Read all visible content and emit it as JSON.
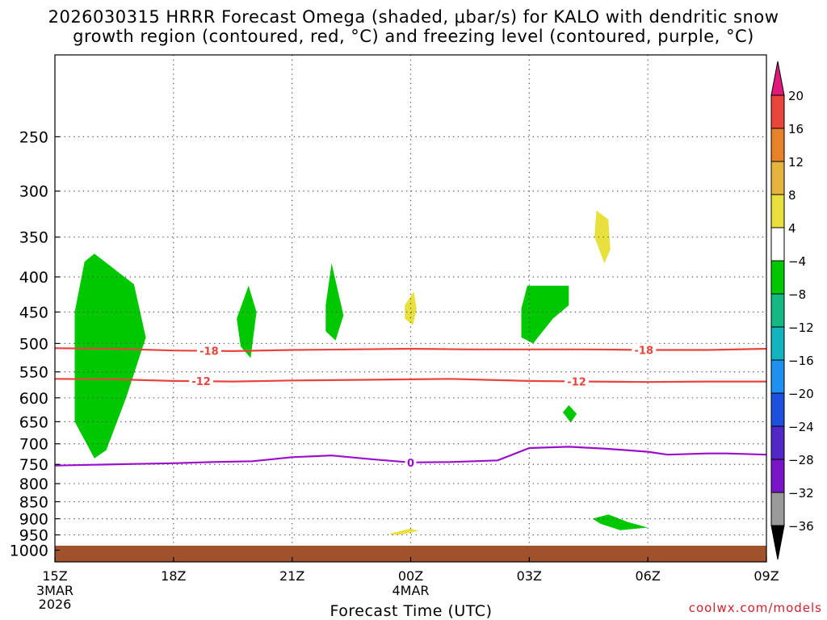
{
  "title_line1": "2026030315 HRRR Forecast Omega (shaded, μbar/s) for KALO with dendritic snow",
  "title_line2": "growth region (contoured, red, °C) and freezing level (contoured, purple, °C)",
  "attribution": "coolwx.com/models",
  "chart_data": {
    "type": "contour",
    "title": "2026030315 HRRR Forecast Omega (shaded, μbar/s) for KALO with dendritic snow growth region (contoured, red, °C) and freezing level (contoured, purple, °C)",
    "xlabel": "Forecast Time (UTC)",
    "ylabel": "",
    "x_range_hours": [
      0,
      18
    ],
    "x_ticks": [
      {
        "h": 0,
        "label": "15Z",
        "sub": [
          "3MAR",
          "2026"
        ]
      },
      {
        "h": 3,
        "label": "18Z",
        "sub": []
      },
      {
        "h": 6,
        "label": "21Z",
        "sub": []
      },
      {
        "h": 9,
        "label": "00Z",
        "sub": [
          "4MAR"
        ]
      },
      {
        "h": 12,
        "label": "03Z",
        "sub": []
      },
      {
        "h": 15,
        "label": "06Z",
        "sub": []
      },
      {
        "h": 18,
        "label": "09Z",
        "sub": []
      }
    ],
    "y_axis": "pressure (hPa), log scale, inverted",
    "y_range": [
      190,
      1040
    ],
    "y_ticks": [
      250,
      300,
      350,
      400,
      450,
      500,
      550,
      600,
      650,
      700,
      750,
      800,
      850,
      900,
      950,
      1000
    ],
    "ground_level_hpa": 985,
    "grid": "dotted",
    "colorbar": {
      "labels": [
        "20",
        "16",
        "12",
        "8",
        "4",
        "−4",
        "−8",
        "−12",
        "−16",
        "−20",
        "−24",
        "−28",
        "−32",
        "−36"
      ],
      "top_color": "#e0197a",
      "colors": [
        "#e8463a",
        "#e8822a",
        "#e6b43c",
        "#e8e03c",
        "#ffffff",
        "#00c800",
        "#14b882",
        "#12b4c0",
        "#1e90f0",
        "#1e50e0",
        "#5028c8",
        "#7a14c8",
        "#9a9a9a"
      ],
      "bottom_color": "#000000"
    },
    "contours": [
      {
        "name": "-18",
        "color": "#e8443c",
        "label_at": [
          [
            3.9,
            "-18"
          ],
          [
            14.9,
            "-18"
          ]
        ],
        "points": [
          [
            0,
            508
          ],
          [
            1.5,
            509
          ],
          [
            3,
            512
          ],
          [
            4.5,
            513
          ],
          [
            6,
            511
          ],
          [
            7.5,
            510
          ],
          [
            9,
            509
          ],
          [
            10.5,
            510
          ],
          [
            12,
            510
          ],
          [
            13.5,
            510
          ],
          [
            15,
            511
          ],
          [
            16.5,
            511
          ],
          [
            18,
            509
          ]
        ]
      },
      {
        "name": "-12",
        "color": "#e8443c",
        "label_at": [
          [
            3.7,
            "-12"
          ],
          [
            13.2,
            "-12"
          ]
        ],
        "points": [
          [
            0,
            563
          ],
          [
            1.5,
            564
          ],
          [
            3,
            567
          ],
          [
            4.5,
            568
          ],
          [
            6,
            566
          ],
          [
            7.5,
            565
          ],
          [
            9,
            564
          ],
          [
            10,
            563
          ],
          [
            11,
            565
          ],
          [
            12,
            567
          ],
          [
            13.5,
            568
          ],
          [
            15,
            569
          ],
          [
            16.5,
            568
          ],
          [
            18,
            568
          ]
        ]
      },
      {
        "name": "0",
        "color": "#9b0fcc",
        "label_at": [
          [
            9,
            "0"
          ]
        ],
        "points": [
          [
            0,
            753
          ],
          [
            1,
            751
          ],
          [
            2,
            749
          ],
          [
            3,
            747
          ],
          [
            4,
            744
          ],
          [
            5,
            742
          ],
          [
            6,
            732
          ],
          [
            7,
            728
          ],
          [
            8,
            737
          ],
          [
            9,
            745
          ],
          [
            10,
            744
          ],
          [
            11.2,
            740
          ],
          [
            12,
            710
          ],
          [
            13,
            707
          ],
          [
            14,
            712
          ],
          [
            15,
            719
          ],
          [
            15.5,
            726
          ],
          [
            16.5,
            723
          ],
          [
            17,
            723
          ],
          [
            18,
            726
          ]
        ]
      }
    ],
    "omega_regions": [
      {
        "value": "-4",
        "color": "#00c800",
        "points": [
          [
            1.0,
            370
          ],
          [
            2.0,
            410
          ],
          [
            2.3,
            490
          ],
          [
            1.8,
            600
          ],
          [
            1.3,
            715
          ],
          [
            1.0,
            735
          ],
          [
            0.5,
            650
          ],
          [
            0.5,
            450
          ],
          [
            0.75,
            380
          ]
        ]
      },
      {
        "value": "-4",
        "color": "#00c800",
        "points": [
          [
            4.9,
            412
          ],
          [
            5.1,
            450
          ],
          [
            4.95,
            525
          ],
          [
            4.7,
            505
          ],
          [
            4.6,
            460
          ]
        ]
      },
      {
        "value": "-4",
        "color": "#00c800",
        "points": [
          [
            7.0,
            382
          ],
          [
            7.3,
            455
          ],
          [
            7.1,
            495
          ],
          [
            6.85,
            480
          ],
          [
            6.85,
            440
          ]
        ]
      },
      {
        "value": "4",
        "color": "#e8e03c",
        "points": [
          [
            9.08,
            420
          ],
          [
            9.15,
            445
          ],
          [
            9.06,
            470
          ],
          [
            8.85,
            460
          ],
          [
            8.85,
            440
          ]
        ]
      },
      {
        "value": "-4",
        "color": "#00c800",
        "points": [
          [
            11.95,
            412
          ],
          [
            13.0,
            412
          ],
          [
            13.0,
            440
          ],
          [
            12.6,
            460
          ],
          [
            12.1,
            500
          ],
          [
            11.8,
            490
          ],
          [
            11.8,
            445
          ]
        ]
      },
      {
        "value": "-4",
        "color": "#00c800",
        "points": [
          [
            13.0,
            615
          ],
          [
            13.2,
            633
          ],
          [
            13.05,
            652
          ],
          [
            12.85,
            630
          ]
        ]
      },
      {
        "value": "4",
        "color": "#e8e03c",
        "points": [
          [
            13.7,
            320
          ],
          [
            14.0,
            330
          ],
          [
            14.05,
            365
          ],
          [
            13.9,
            382
          ],
          [
            13.65,
            350
          ]
        ]
      },
      {
        "value": "4",
        "color": "#e8e03c",
        "points": [
          [
            8.5,
            945
          ],
          [
            9.0,
            930
          ],
          [
            9.2,
            937
          ],
          [
            8.8,
            948
          ],
          [
            8.5,
            950
          ]
        ]
      },
      {
        "value": "-4",
        "color": "#00c800",
        "points": [
          [
            13.6,
            900
          ],
          [
            14.0,
            887
          ],
          [
            14.5,
            910
          ],
          [
            15.0,
            927
          ],
          [
            14.3,
            935
          ],
          [
            13.8,
            915
          ]
        ]
      }
    ]
  }
}
